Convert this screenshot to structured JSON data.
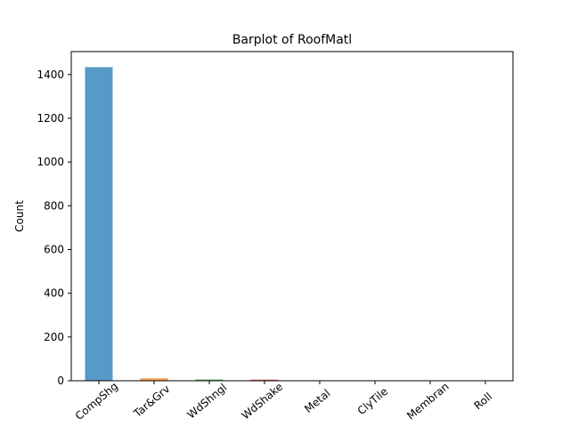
{
  "chart_data": {
    "type": "bar",
    "title": "Barplot of RoofMatl",
    "xlabel": "",
    "ylabel": "Count",
    "categories": [
      "CompShg",
      "Tar&Grv",
      "WdShngl",
      "WdShake",
      "Metal",
      "ClyTile",
      "Membran",
      "Roll"
    ],
    "values": [
      1434,
      11,
      6,
      5,
      1,
      1,
      1,
      1
    ],
    "ylim": [
      0,
      1505
    ],
    "yticks": [
      0,
      200,
      400,
      600,
      800,
      1000,
      1200,
      1400
    ],
    "xtick_rotation_deg": 40,
    "grid": false,
    "colors": [
      "#1f77b4",
      "#ff7f0e",
      "#2ca02c",
      "#d62728",
      "#9467bd",
      "#8c564b",
      "#e377c2",
      "#7f7f7f"
    ],
    "bar_alpha": 0.75
  }
}
